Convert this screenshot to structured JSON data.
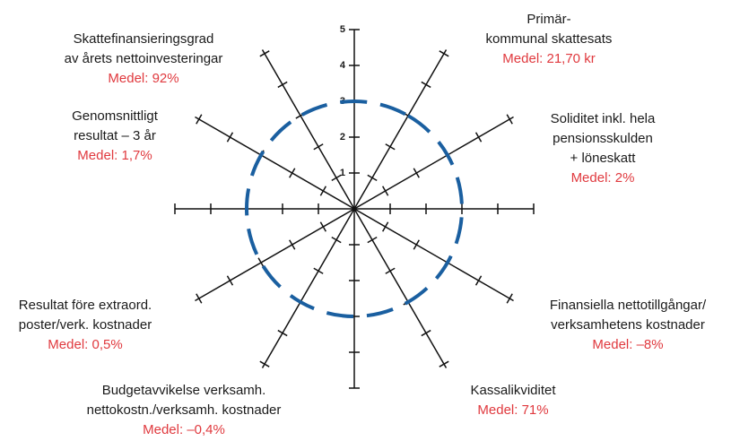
{
  "chart_data": {
    "type": "radar",
    "axes": [
      {
        "label": [
          "Primär-",
          "kommunal skattesats"
        ],
        "mean": "Medel: 21,70 kr"
      },
      {
        "label": [
          "Soliditet inkl. hela",
          "pensionsskulden",
          "+ löneskatt"
        ],
        "mean": "Medel: 2%"
      },
      {
        "label": [
          "Finansiella nettotillgångar/",
          "verksamhetens kostnader"
        ],
        "mean": "Medel: –8%"
      },
      {
        "label": [
          "Kassalikviditet"
        ],
        "mean": "Medel: 71%"
      },
      {
        "label": [
          "Budgetavvikelse verksamh.",
          "nettokostn./verksamh. kostnader"
        ],
        "mean": "Medel: –0,4%"
      },
      {
        "label": [
          "Resultat före extraord.",
          "poster/verk. kostnader"
        ],
        "mean": "Medel: 0,5%"
      },
      {
        "label": [
          "Genomsnittligt",
          "resultat – 3 år"
        ],
        "mean": "Medel: 1,7%"
      },
      {
        "label": [
          "Skattefinansieringsgrad",
          "av årets nettoinvesteringar"
        ],
        "mean": "Medel: 92%"
      }
    ],
    "values": [
      3,
      3,
      3,
      3,
      3,
      3,
      3,
      3
    ],
    "color": "#1a5fa0",
    "rlim": [
      0,
      5
    ],
    "rticks": [
      1,
      2,
      3,
      4,
      5
    ]
  }
}
